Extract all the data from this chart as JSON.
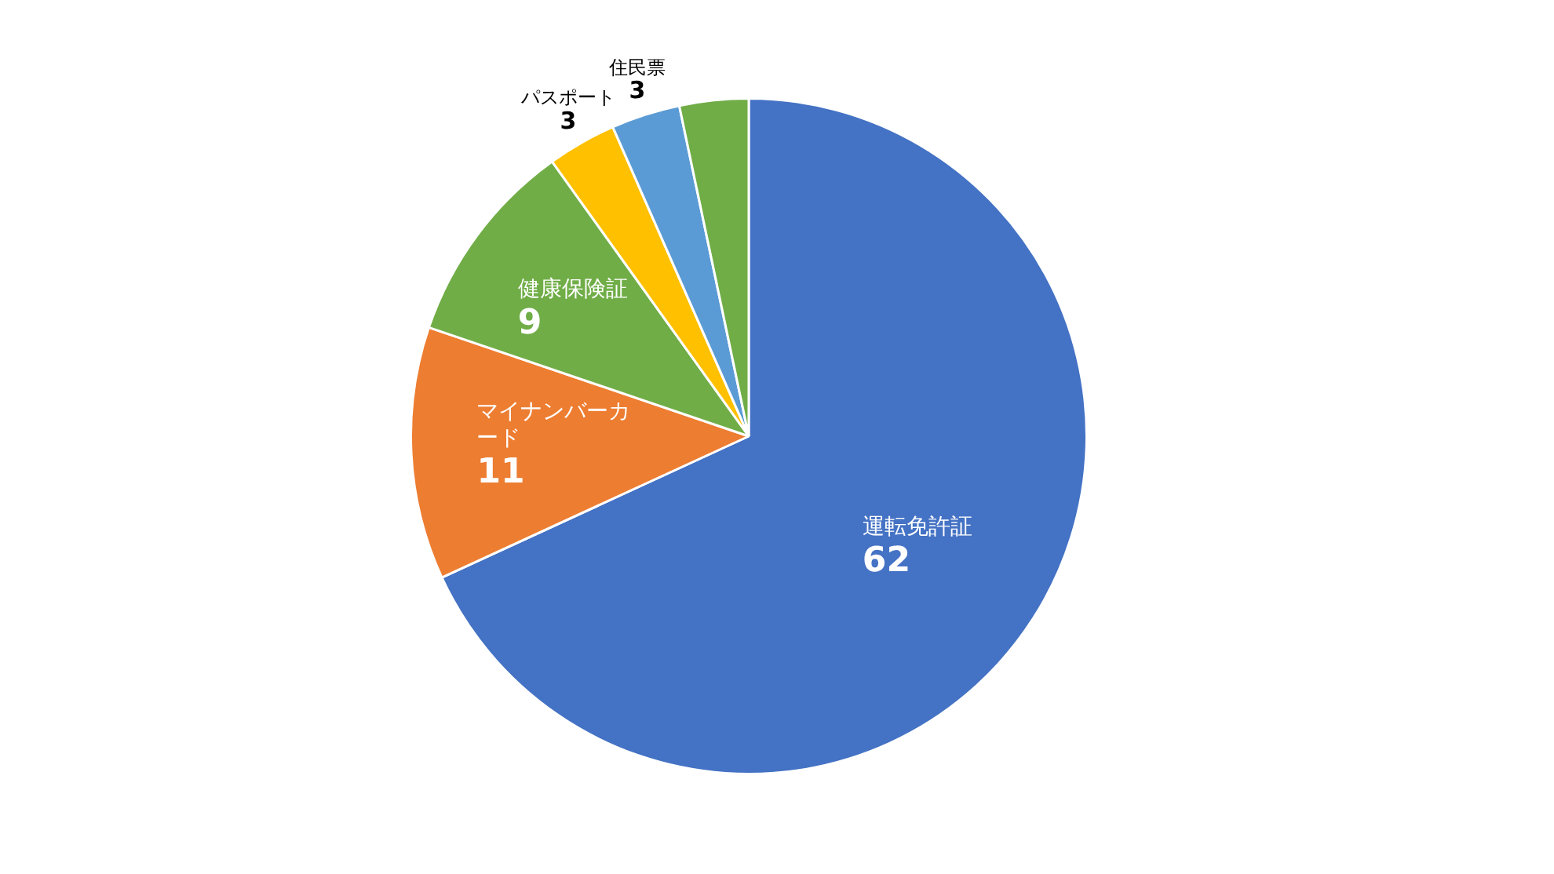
{
  "chart_data": {
    "type": "pie",
    "categories": [
      "運転免許証",
      "マイナンバーカード",
      "健康保険証",
      "パスポート",
      "住民票",
      null
    ],
    "values": [
      62,
      11,
      9,
      3,
      3,
      3
    ],
    "colors": [
      "#4472c4",
      "#ed7d31",
      "#70ad47",
      "#ffc000",
      "#5b9bd5",
      "#70ad47"
    ],
    "value_labels": [
      "62",
      "11",
      "9",
      "3",
      "3",
      null
    ],
    "legend": false
  }
}
